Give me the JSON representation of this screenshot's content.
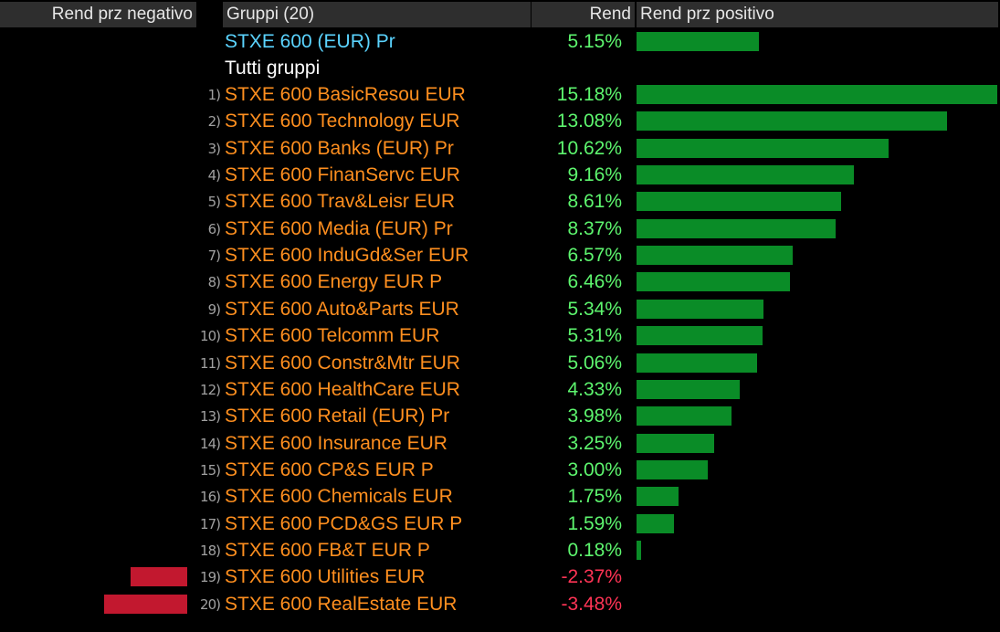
{
  "header": {
    "negative_label": "Rend prz negativo",
    "groups_label": "Gruppi (20)",
    "rend_label": "Rend",
    "positive_label": "Rend prz positivo"
  },
  "benchmark": {
    "name": "STXE 600 (EUR) Pr",
    "value_label": "5.15%",
    "value": 5.15
  },
  "group_heading": "Tutti gruppi",
  "colors": {
    "background": "#000000",
    "header_background": "#2e2e2e",
    "positive_bar": "#0a8c27",
    "negative_bar": "#c2182f",
    "positive_text": "#5df56e",
    "negative_text": "#ff3455",
    "group_name_text": "#ff8f1f",
    "benchmark_text": "#5bd4ff"
  },
  "chart_data": {
    "type": "bar",
    "orientation": "horizontal",
    "unit": "%",
    "categories": [
      "STXE 600 BasicResou EUR",
      "STXE 600 Technology EUR",
      "STXE 600 Banks (EUR) Pr",
      "STXE 600 FinanServc EUR",
      "STXE 600 Trav&Leisr EUR",
      "STXE 600 Media (EUR) Pr",
      "STXE 600 InduGd&Ser EUR",
      "STXE 600 Energy EUR P",
      "STXE 600 Auto&Parts EUR",
      "STXE 600 Telcomm EUR",
      "STXE 600 Constr&Mtr EUR",
      "STXE 600 HealthCare EUR",
      "STXE 600 Retail (EUR) Pr",
      "STXE 600 Insurance EUR",
      "STXE 600 CP&S EUR P",
      "STXE 600 Chemicals EUR",
      "STXE 600 PCD&GS EUR P",
      "STXE 600 FB&T EUR P",
      "STXE 600 Utilities EUR",
      "STXE 600 RealEstate EUR"
    ],
    "ranks": [
      "1)",
      "2)",
      "3)",
      "4)",
      "5)",
      "6)",
      "7)",
      "8)",
      "9)",
      "10)",
      "11)",
      "12)",
      "13)",
      "14)",
      "15)",
      "16)",
      "17)",
      "18)",
      "19)",
      "20)"
    ],
    "values": [
      15.18,
      13.08,
      10.62,
      9.16,
      8.61,
      8.37,
      6.57,
      6.46,
      5.34,
      5.31,
      5.06,
      4.33,
      3.98,
      3.25,
      3.0,
      1.75,
      1.59,
      0.18,
      -2.37,
      -3.48
    ],
    "value_labels": [
      "15.18%",
      "13.08%",
      "10.62%",
      "9.16%",
      "8.61%",
      "8.37%",
      "6.57%",
      "6.46%",
      "5.34%",
      "5.31%",
      "5.06%",
      "4.33%",
      "3.98%",
      "3.25%",
      "3.00%",
      "1.75%",
      "1.59%",
      "0.18%",
      "-2.37%",
      "-3.48%"
    ],
    "grid": false,
    "legend": "none"
  }
}
